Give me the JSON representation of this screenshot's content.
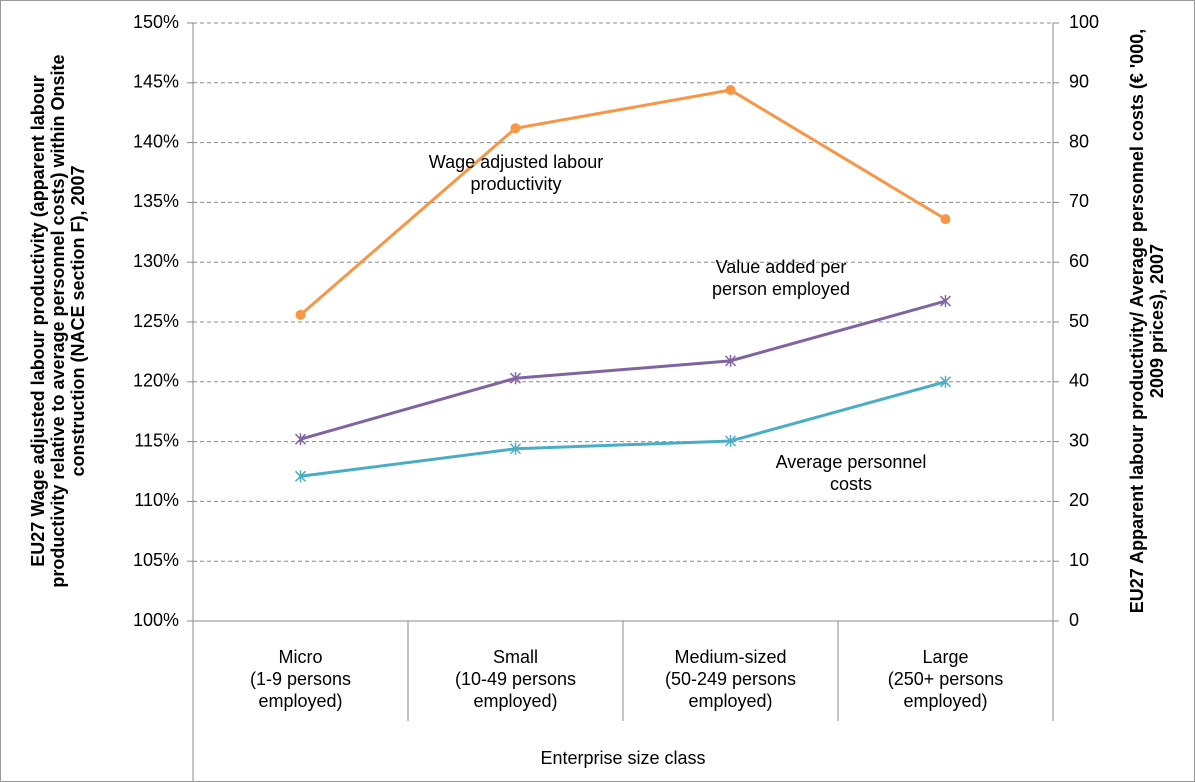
{
  "chart_data": {
    "type": "line",
    "categories": [
      "Micro\n(1-9 persons\nemployed)",
      "Small\n(10-49 persons\nemployed)",
      "Medium-sized\n(50-249 persons\nemployed)",
      "Large\n(250+ persons\nemployed)"
    ],
    "series": [
      {
        "name": "Wage adjusted labour\nproductivity",
        "color": "#f79646",
        "marker": "circle",
        "values": [
          125.6,
          141.2,
          144.4,
          133.6
        ]
      },
      {
        "name": "Value added per\nperson employed",
        "color": "#8064a2",
        "marker": "star",
        "axis": "y2",
        "values": [
          30.4,
          40.6,
          43.5,
          53.5
        ]
      },
      {
        "name": "Average personnel\ncosts",
        "color": "#4bacc6",
        "marker": "star",
        "axis": "y2",
        "values": [
          24.2,
          28.8,
          30.1,
          40.0
        ]
      }
    ],
    "xlabel": "Enterprise size class",
    "ylabel": "EU27 Wage adjusted labour productivity (apparent labour productivity relative to average personnel costs) within Onsite construction (NACE section F), 2007",
    "y2label": "EU27 Apparent labour productivity/ Average personnel costs (€ '000, 2009 prices), 2007",
    "ylim": [
      100,
      150
    ],
    "yticks": [
      {
        "value": 100,
        "label": "100%"
      },
      {
        "value": 105,
        "label": "105%"
      },
      {
        "value": 110,
        "label": "110%"
      },
      {
        "value": 115,
        "label": "115%"
      },
      {
        "value": 120,
        "label": "120%"
      },
      {
        "value": 125,
        "label": "125%"
      },
      {
        "value": 130,
        "label": "130%"
      },
      {
        "value": 135,
        "label": "135%"
      },
      {
        "value": 140,
        "label": "140%"
      },
      {
        "value": 145,
        "label": "145%"
      },
      {
        "value": 150,
        "label": "150%"
      }
    ],
    "y2lim": [
      0,
      100
    ],
    "y2ticks": [
      0,
      10,
      20,
      30,
      40,
      50,
      60,
      70,
      80,
      90,
      100
    ],
    "grid": true
  }
}
